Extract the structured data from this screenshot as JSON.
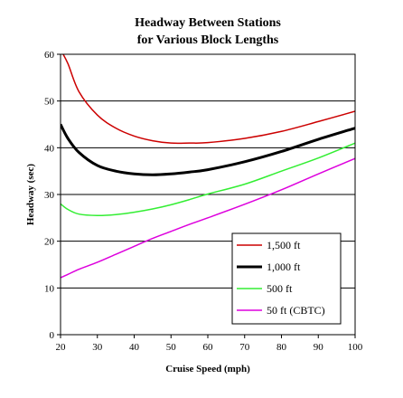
{
  "chart_data": {
    "type": "line",
    "title": "Headway Between Stations",
    "subtitle": "for Various Block Lengths",
    "xlabel": "Cruise Speed (mph)",
    "ylabel": "Headway (sec)",
    "xlim": [
      20,
      100
    ],
    "ylim": [
      0,
      60
    ],
    "xticks": [
      20,
      30,
      40,
      50,
      60,
      70,
      80,
      90,
      100
    ],
    "yticks": [
      0,
      10,
      20,
      30,
      40,
      50,
      60
    ],
    "grid": "horizontal",
    "legend_position": "bottom-right",
    "x": [
      20,
      22,
      25,
      30,
      35,
      40,
      45,
      50,
      55,
      60,
      70,
      80,
      90,
      100
    ],
    "series": [
      {
        "name": "1,500 ft",
        "color": "#cc0000",
        "width": 1.5,
        "values": [
          61,
          58,
          52,
          47,
          44.2,
          42.5,
          41.5,
          41,
          41,
          41.1,
          42,
          43.5,
          45.6,
          47.8
        ]
      },
      {
        "name": "1,000 ft",
        "color": "#000000",
        "width": 3,
        "values": [
          45,
          42,
          39,
          36.2,
          35,
          34.4,
          34.2,
          34.4,
          34.8,
          35.3,
          37,
          39.2,
          41.8,
          44.2
        ]
      },
      {
        "name": "500 ft",
        "color": "#33ee33",
        "width": 1.5,
        "values": [
          28,
          26.8,
          25.8,
          25.5,
          25.7,
          26.2,
          26.9,
          27.8,
          28.9,
          30.1,
          32.2,
          35,
          37.8,
          41
        ]
      },
      {
        "name": "50 ft (CBTC)",
        "color": "#dd00dd",
        "width": 1.5,
        "values": [
          12.2,
          12.9,
          14,
          15.5,
          17.2,
          18.9,
          20.6,
          22.1,
          23.6,
          25,
          27.9,
          31,
          34.4,
          37.7
        ]
      }
    ]
  }
}
